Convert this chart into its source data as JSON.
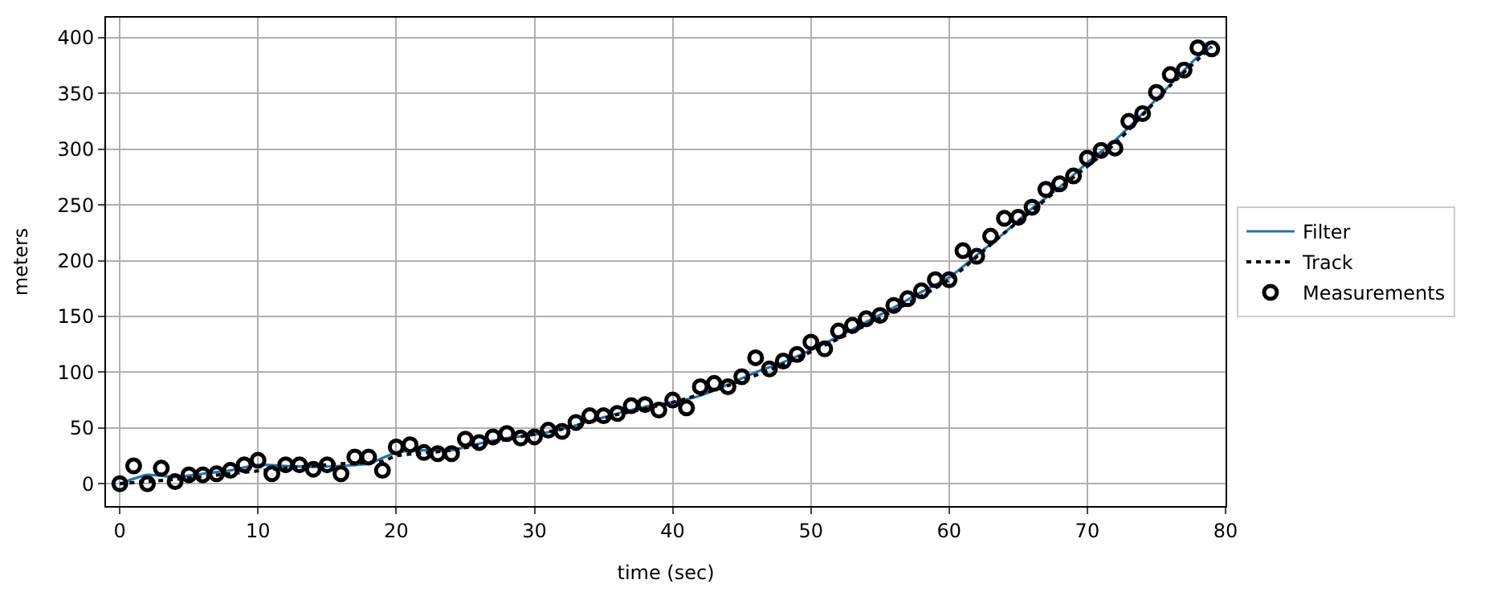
{
  "chart_data": {
    "type": "line",
    "xlabel": "time (sec)",
    "ylabel": "meters",
    "xlim": [
      -1,
      80
    ],
    "ylim": [
      -20,
      418
    ],
    "xticks": [
      0,
      10,
      20,
      30,
      40,
      50,
      60,
      70,
      80
    ],
    "yticks": [
      0,
      50,
      100,
      150,
      200,
      250,
      300,
      350,
      400
    ],
    "grid": true,
    "legend": "right",
    "series": [
      {
        "name": "Filter",
        "color": "#1f77b4",
        "line_style": "solid",
        "x": [
          0,
          2,
          4,
          6,
          8,
          10,
          12,
          14,
          16,
          18,
          20,
          22,
          24,
          26,
          28,
          30,
          32,
          34,
          36,
          38,
          40,
          42,
          44,
          46,
          48,
          50,
          52,
          54,
          56,
          58,
          60,
          62,
          64,
          66,
          68,
          70,
          72,
          74,
          76,
          78,
          79
        ],
        "values": [
          0,
          8,
          6,
          9,
          12,
          17,
          16,
          15,
          16,
          18,
          28,
          30,
          30,
          36,
          41,
          44,
          49,
          56,
          63,
          69,
          73,
          79,
          89,
          100,
          109,
          120,
          132,
          145,
          158,
          172,
          185,
          205,
          225,
          247,
          266,
          288,
          308,
          332,
          358,
          383,
          392
        ]
      },
      {
        "name": "Track",
        "color": "#000000",
        "line_style": "dotted",
        "x": [
          0,
          4,
          8,
          12,
          16,
          19,
          20,
          24,
          28,
          32,
          36,
          40,
          44,
          48,
          52,
          56,
          60,
          64,
          68,
          72,
          76,
          79
        ],
        "values": [
          0,
          4,
          9,
          14,
          18,
          20,
          25,
          30,
          40,
          49,
          62,
          73,
          88,
          107,
          130,
          155,
          183,
          225,
          265,
          305,
          357,
          392
        ]
      },
      {
        "name": "Measurements",
        "type": "scatter",
        "color": "#000000",
        "marker": "circle",
        "x": [
          0,
          1,
          2,
          3,
          4,
          5,
          6,
          7,
          8,
          9,
          10,
          11,
          12,
          13,
          14,
          15,
          16,
          17,
          18,
          19,
          20,
          21,
          22,
          23,
          24,
          25,
          26,
          27,
          28,
          29,
          30,
          31,
          32,
          33,
          34,
          35,
          36,
          37,
          38,
          39,
          40,
          41,
          42,
          43,
          44,
          45,
          46,
          47,
          48,
          49,
          50,
          51,
          52,
          53,
          54,
          55,
          56,
          57,
          58,
          59,
          60,
          61,
          62,
          63,
          64,
          65,
          66,
          67,
          68,
          69,
          70,
          71,
          72,
          73,
          74,
          75,
          76,
          77,
          78,
          79
        ],
        "values": [
          0,
          16,
          0,
          14,
          2,
          8,
          8,
          9,
          12,
          17,
          21,
          9,
          17,
          17,
          13,
          17,
          9,
          24,
          24,
          12,
          33,
          35,
          28,
          27,
          27,
          40,
          37,
          42,
          45,
          41,
          42,
          48,
          47,
          55,
          61,
          61,
          63,
          70,
          71,
          66,
          75,
          68,
          87,
          90,
          87,
          96,
          113,
          103,
          110,
          116,
          127,
          121,
          137,
          142,
          148,
          151,
          160,
          166,
          173,
          183,
          183,
          209,
          204,
          222,
          238,
          239,
          248,
          264,
          269,
          276,
          292,
          299,
          301,
          325,
          332,
          351,
          367,
          371,
          391,
          390
        ]
      }
    ]
  }
}
